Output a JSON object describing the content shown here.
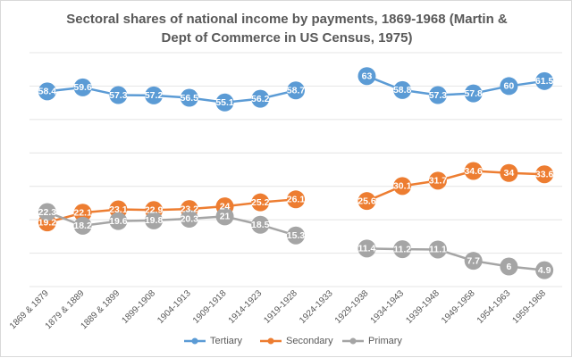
{
  "chart_data": {
    "type": "line",
    "title": "Sectoral shares of national income by payments, 1869-1968 (Martin & Dept of Commerce in US Census, 1975)",
    "categories": [
      "1869 & 1879",
      "1879 & 1889",
      "1889 & 1899",
      "1899-1908",
      "1904-1913",
      "1909-1918",
      "1914-1923",
      "1919-1928",
      "1924-1933",
      "1929-1938",
      "1934-1943",
      "1939-1948",
      "1949-1958",
      "1954-1963",
      "1959-1968"
    ],
    "series": [
      {
        "name": "Tertiary",
        "color": "#5b9bd5",
        "values": [
          58.4,
          59.6,
          57.3,
          57.2,
          56.5,
          55.1,
          56.2,
          58.7,
          null,
          63,
          58.8,
          57.3,
          57.8,
          60,
          61.5
        ]
      },
      {
        "name": "Secondary",
        "color": "#ed7d31",
        "values": [
          19.2,
          22.1,
          23.1,
          22.9,
          23.2,
          24,
          25.2,
          26.1,
          null,
          25.6,
          30.1,
          31.7,
          34.6,
          34,
          33.6
        ]
      },
      {
        "name": "Primary",
        "color": "#a5a5a5",
        "values": [
          22.3,
          18.2,
          19.6,
          19.8,
          20.3,
          21,
          18.5,
          15.3,
          null,
          11.4,
          11.2,
          11.1,
          7.7,
          6,
          4.9
        ]
      }
    ],
    "xlabel": "",
    "ylabel": "",
    "legend_position": "bottom",
    "grid": true
  }
}
